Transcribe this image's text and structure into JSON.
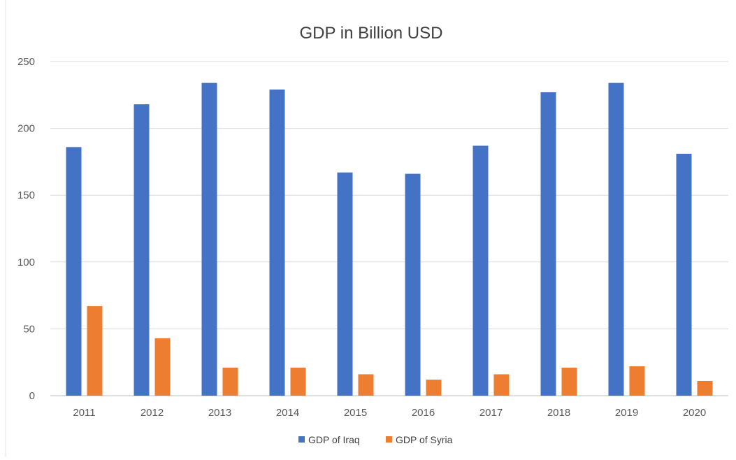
{
  "colors": {
    "series_1": "#4472c4",
    "series_2": "#ed7d31",
    "gridline": "#d9d9d9",
    "text": "#595959",
    "background": "#ffffff"
  },
  "chart_data": {
    "type": "bar",
    "title": "GDP in Billion USD",
    "xlabel": "",
    "ylabel": "",
    "categories": [
      "2011",
      "2012",
      "2013",
      "2014",
      "2015",
      "2016",
      "2017",
      "2018",
      "2019",
      "2020"
    ],
    "series": [
      {
        "name": "GDP of Iraq",
        "color": "#4472c4",
        "values": [
          186,
          218,
          234,
          229,
          167,
          166,
          187,
          227,
          234,
          181
        ]
      },
      {
        "name": "GDP of Syria",
        "color": "#ed7d31",
        "values": [
          67,
          43,
          21,
          21,
          16,
          12,
          16,
          21,
          22,
          11
        ]
      }
    ],
    "ylim": [
      0,
      250
    ],
    "yticks": [
      0,
      50,
      100,
      150,
      200,
      250
    ],
    "grid": true,
    "legend_position": "bottom"
  }
}
